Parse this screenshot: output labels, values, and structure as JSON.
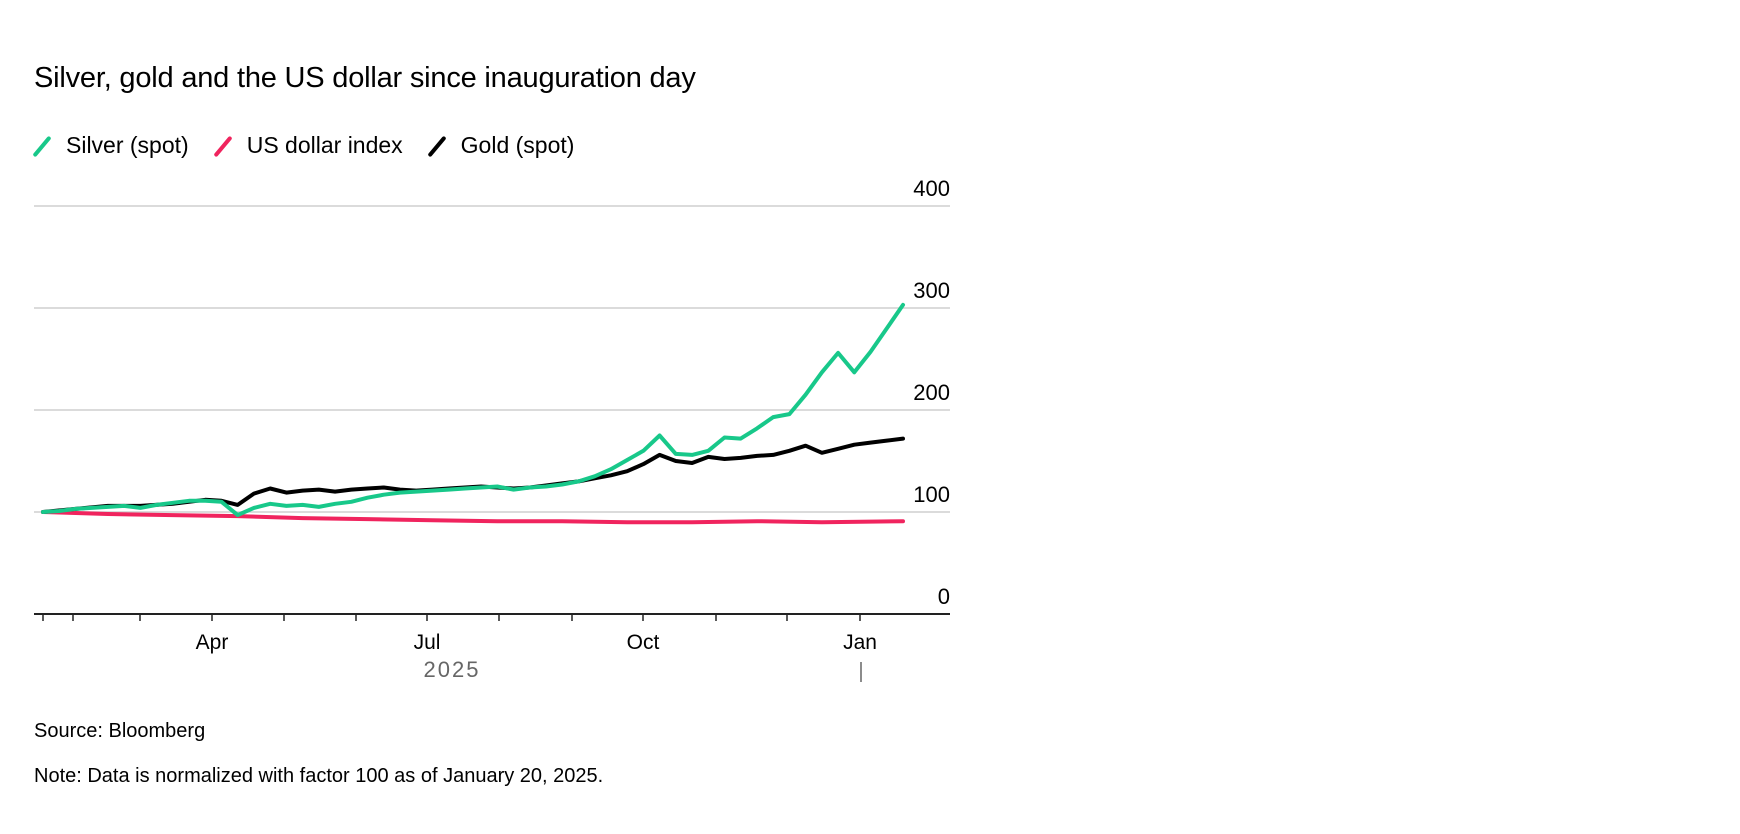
{
  "chart_data": {
    "type": "line",
    "title": "Silver, gold and the US dollar since inauguration day",
    "xlabel": "2025",
    "ylabel": "",
    "ylim": [
      0,
      400
    ],
    "y_ticks": [
      0,
      100,
      200,
      300,
      400
    ],
    "x_tick_labels": [
      "Apr",
      "Jul",
      "Oct",
      "Jan"
    ],
    "x_range_weeks": [
      0,
      53
    ],
    "colors": {
      "silver": "#18c88a",
      "usd": "#f0245e",
      "gold": "#000000",
      "grid": "#cfcfcf",
      "axis": "#222222",
      "year_label": "#666666"
    },
    "series": [
      {
        "name": "Silver (spot)",
        "color": "#18c88a",
        "weeks": [
          0,
          1,
          2,
          3,
          4,
          5,
          6,
          7,
          8,
          9,
          10,
          11,
          12,
          13,
          14,
          15,
          16,
          17,
          18,
          19,
          20,
          21,
          22,
          23,
          24,
          25,
          26,
          27,
          28,
          29,
          30,
          31,
          32,
          33,
          34,
          35,
          36,
          37,
          38,
          39,
          40,
          41,
          42,
          43,
          44,
          45,
          46,
          47,
          48,
          49,
          50,
          51,
          52,
          53
        ],
        "values": [
          100,
          101,
          103,
          104,
          105,
          106,
          104,
          107,
          109,
          111,
          111,
          110,
          97,
          104,
          108,
          106,
          107,
          105,
          108,
          110,
          114,
          117,
          119,
          120,
          121,
          122,
          123,
          124,
          125,
          122,
          124,
          125,
          127,
          130,
          135,
          142,
          151,
          160,
          175,
          157,
          156,
          160,
          173,
          172,
          182,
          193,
          196,
          215,
          237,
          256,
          237,
          257,
          280,
          303
        ]
      },
      {
        "name": "US dollar index",
        "color": "#f0245e",
        "weeks": [
          0,
          4,
          8,
          12,
          16,
          20,
          24,
          28,
          32,
          36,
          40,
          44,
          48,
          53
        ],
        "values": [
          100,
          98,
          97,
          96,
          94,
          93,
          92,
          91,
          91,
          90,
          90,
          91,
          90,
          91
        ]
      },
      {
        "name": "Gold (spot)",
        "color": "#000000",
        "weeks": [
          0,
          2,
          4,
          6,
          8,
          10,
          11,
          12,
          13,
          14,
          15,
          16,
          17,
          18,
          19,
          20,
          21,
          22,
          23,
          24,
          25,
          26,
          27,
          28,
          29,
          30,
          31,
          32,
          33,
          34,
          35,
          36,
          37,
          38,
          39,
          40,
          41,
          42,
          43,
          44,
          45,
          46,
          47,
          48,
          49,
          50,
          51,
          52,
          53
        ],
        "values": [
          100,
          103,
          106,
          106,
          108,
          112,
          111,
          107,
          118,
          123,
          119,
          121,
          122,
          120,
          122,
          123,
          124,
          122,
          121,
          122,
          123,
          124,
          125,
          124,
          123,
          124,
          126,
          128,
          130,
          133,
          136,
          140,
          147,
          156,
          150,
          148,
          154,
          152,
          153,
          155,
          156,
          160,
          165,
          158,
          162,
          166,
          168,
          170,
          172
        ]
      }
    ]
  },
  "legend": [
    {
      "label": "Silver (spot)",
      "color": "#18c88a"
    },
    {
      "label": "US dollar index",
      "color": "#f0245e"
    },
    {
      "label": "Gold (spot)",
      "color": "#000000"
    }
  ],
  "footer": {
    "source": "Source: Bloomberg",
    "note": "Note: Data is normalized with factor 100 as of January 20, 2025."
  }
}
